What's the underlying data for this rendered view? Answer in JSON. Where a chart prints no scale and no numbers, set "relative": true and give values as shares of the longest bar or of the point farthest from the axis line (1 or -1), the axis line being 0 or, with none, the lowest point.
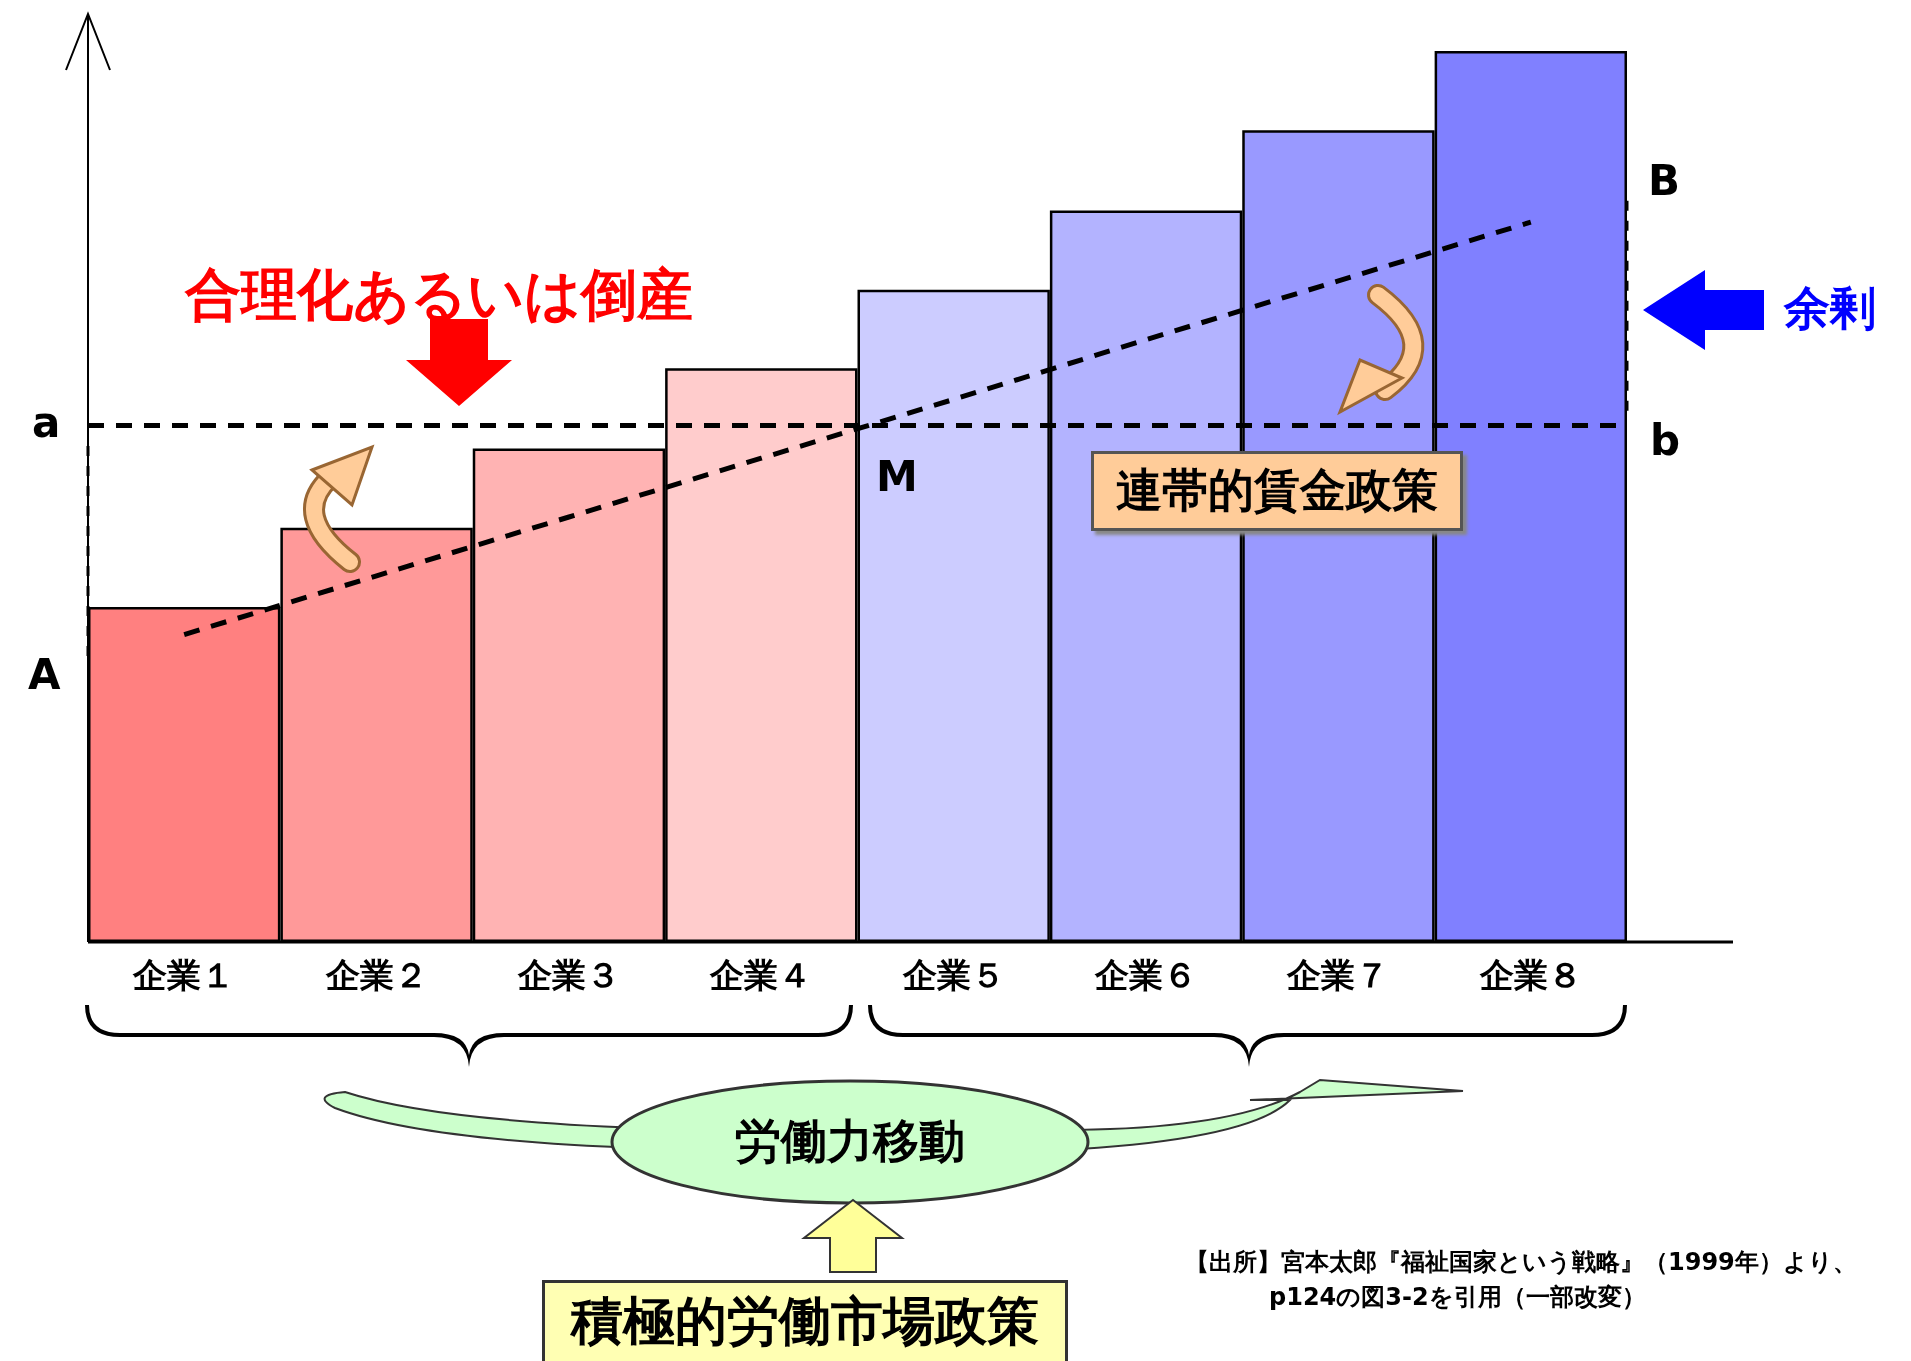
{
  "chart_data": {
    "type": "bar",
    "relative": true,
    "categories": [
      "企業１",
      "企業２",
      "企業３",
      "企業４",
      "企業５",
      "企業６",
      "企業７",
      "企業８"
    ],
    "series": [
      {
        "values": [
          0.376,
          0.465,
          0.554,
          0.644,
          0.732,
          0.821,
          0.911,
          1.0
        ],
        "colors": [
          "#ff8080",
          "#ff9999",
          "#ffb3b3",
          "#ffcccc",
          "#ccccff",
          "#b3b3ff",
          "#9999ff",
          "#8080ff"
        ]
      },
      {
        "type": "line",
        "values": [
          0.345,
          0.411,
          0.477,
          0.543,
          0.609,
          0.676,
          0.742,
          0.808
        ],
        "color": "#000000",
        "line_style": "dashed",
        "marker": "none"
      }
    ],
    "ref_lines": [
      {
        "axis": "y",
        "value": 0.577,
        "color": "#000000",
        "line_style": "dashed"
      }
    ],
    "annotations": [
      "合理化あるいは倒産",
      "余剰",
      "連帯的賃金政策",
      "労働力移動",
      "積極的労働市場政策",
      "【出所】宮本太郎『福祉国家という戦略』（1999年）より、p124の図3-2を引用（一部改変）",
      "a",
      "b",
      "A",
      "B",
      "M"
    ]
  }
}
